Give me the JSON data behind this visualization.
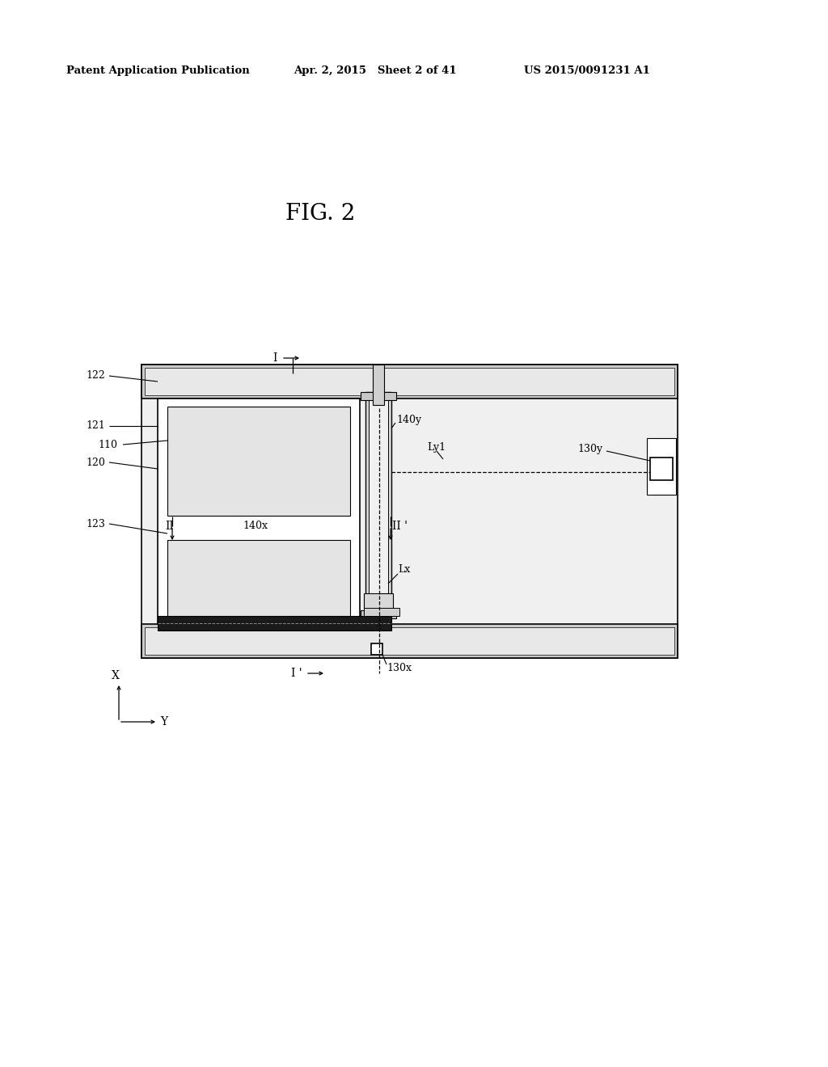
{
  "header_left": "Patent Application Publication",
  "header_mid": "Apr. 2, 2015   Sheet 2 of 41",
  "header_right": "US 2015/0091231 A1",
  "title_fig": "FIG. 2",
  "bg_color": "#ffffff",
  "lc": "#000000"
}
